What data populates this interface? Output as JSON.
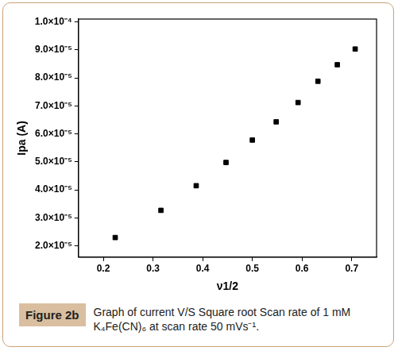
{
  "chart_data": {
    "type": "scatter",
    "x_label": "ν1/2",
    "y_label": "Ipa (A)",
    "figure_label": "Figure 2b",
    "caption": "Graph of current V/S Square root Scan rate of 1 mM K₄Fe(CN)₆ at scan rate 50 mVs⁻¹.",
    "x": [
      0.224,
      0.316,
      0.387,
      0.447,
      0.5,
      0.548,
      0.592,
      0.632,
      0.671,
      0.707
    ],
    "values": [
      2.3e-05,
      3.27e-05,
      4.15e-05,
      4.98e-05,
      5.78e-05,
      6.43e-05,
      7.12e-05,
      7.88e-05,
      8.47e-05,
      9.03e-05
    ],
    "color": "#000000",
    "marker": "square",
    "grid": false,
    "xlim": [
      0.15,
      0.75
    ],
    "xticks": [
      0.2,
      0.3,
      0.4,
      0.5,
      0.6,
      0.7
    ],
    "ylim": [
      1.6e-05,
      0.000101
    ],
    "yticks": [
      {
        "value": 2e-05,
        "label": "2.0×10⁻⁵"
      },
      {
        "value": 3e-05,
        "label": "3.0×10⁻⁵"
      },
      {
        "value": 4e-05,
        "label": "4.0×10⁻⁵"
      },
      {
        "value": 5e-05,
        "label": "5.0×10⁻⁵"
      },
      {
        "value": 6e-05,
        "label": "6.0×10⁻⁵"
      },
      {
        "value": 7e-05,
        "label": "7.0×10⁻⁵"
      },
      {
        "value": 8e-05,
        "label": "8.0×10⁻⁵"
      },
      {
        "value": 9e-05,
        "label": "9.0×10⁻⁵"
      },
      {
        "value": 0.0001,
        "label": "1.0×10⁻⁴"
      }
    ]
  }
}
